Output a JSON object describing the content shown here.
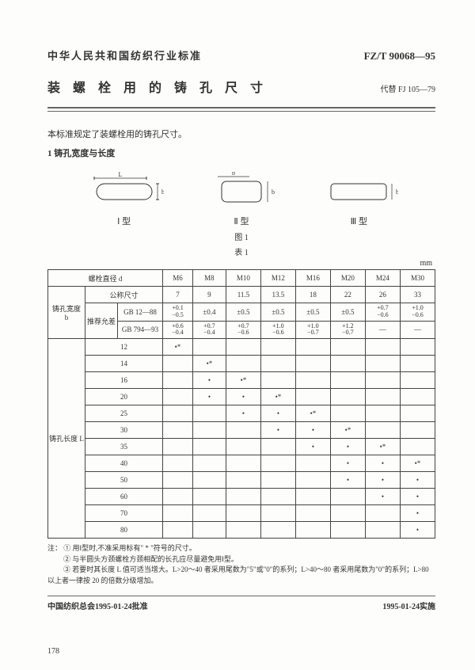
{
  "header": {
    "organization": "中华人民共和国纺织行业标准",
    "standard_number": "FZ/T 90068—95",
    "title": "装 螺 栓 用 的 铸 孔 尺 寸",
    "replaces": "代替 FJ 105—79"
  },
  "intro": "本标准规定了装螺栓用的铸孔尺寸。",
  "section1": "1  铸孔宽度与长度",
  "diagrams": {
    "type1": "Ⅰ 型",
    "type2": "Ⅱ 型",
    "type3": "Ⅲ 型",
    "fig": "图 1",
    "table_label": "表 1"
  },
  "table": {
    "unit": "mm",
    "header_bolt_d": "螺栓直径 d",
    "sizes": [
      "M6",
      "M8",
      "M10",
      "M12",
      "M16",
      "M20",
      "M24",
      "M30"
    ],
    "nominal": "公称尺寸",
    "nominal_vals": [
      "7",
      "9",
      "11.5",
      "13.5",
      "18",
      "22",
      "26",
      "33"
    ],
    "width_label": "铸孔宽度\nb",
    "tol_label": "推荐允差",
    "gb12": "GB 12—88",
    "gb12_vals": [
      "+0.1\n−0.5",
      "±0.4",
      "±0.5",
      "±0.5",
      "±0.5",
      "±0.5",
      "+0.7\n−0.6",
      "+1.0\n−0.6"
    ],
    "gb794": "GB 794—93",
    "gb794_vals": [
      "+0.6\n−0.4",
      "+0.7\n−0.4",
      "+0.7\n−0.6",
      "+1.0\n−0.6",
      "+1.0\n−0.7",
      "+1.2\n−0.7",
      "—",
      "—"
    ],
    "length_label": "铸孔长度 L",
    "length_rows": [
      {
        "len": "12",
        "dots": [
          "•*",
          "",
          "",
          "",
          "",
          "",
          "",
          ""
        ]
      },
      {
        "len": "14",
        "dots": [
          "",
          "•*",
          "",
          "",
          "",
          "",
          "",
          ""
        ]
      },
      {
        "len": "16",
        "dots": [
          "",
          "•",
          "•*",
          "",
          "",
          "",
          "",
          ""
        ]
      },
      {
        "len": "20",
        "dots": [
          "",
          "•",
          "•",
          "•*",
          "",
          "",
          "",
          ""
        ]
      },
      {
        "len": "25",
        "dots": [
          "",
          "",
          "•",
          "•",
          "•*",
          "",
          "",
          ""
        ]
      },
      {
        "len": "30",
        "dots": [
          "",
          "",
          "",
          "•",
          "•",
          "•*",
          "",
          ""
        ]
      },
      {
        "len": "35",
        "dots": [
          "",
          "",
          "",
          "",
          "•",
          "•",
          "•*",
          ""
        ]
      },
      {
        "len": "40",
        "dots": [
          "",
          "",
          "",
          "",
          "",
          "•",
          "•",
          "•*"
        ]
      },
      {
        "len": "50",
        "dots": [
          "",
          "",
          "",
          "",
          "",
          "•",
          "•",
          "•"
        ]
      },
      {
        "len": "60",
        "dots": [
          "",
          "",
          "",
          "",
          "",
          "",
          "•",
          "•"
        ]
      },
      {
        "len": "70",
        "dots": [
          "",
          "",
          "",
          "",
          "",
          "",
          "",
          "•"
        ]
      },
      {
        "len": "80",
        "dots": [
          "",
          "",
          "",
          "",
          "",
          "",
          "",
          "•"
        ]
      }
    ]
  },
  "notes": {
    "lead": "注：",
    "n1": "① 用Ⅰ型时,不准采用标有\" * \"符号的尺寸。",
    "n2": "② 与半圆头方颈螺栓方颈相配的长孔应尽量避免用Ⅰ型。",
    "n3": "③ 若要时其长度 L 值可适当增大。L>20～40 者采用尾数为\"5\"或\"0\"的系列；L>40～80 者采用尾数为\"0\"的系列；L>80 以上者一律按 20 的倍数分级增加。"
  },
  "footer": {
    "approve": "中国纺织总会1995-01-24批准",
    "implement": "1995-01-24实施"
  },
  "page_number": "178"
}
